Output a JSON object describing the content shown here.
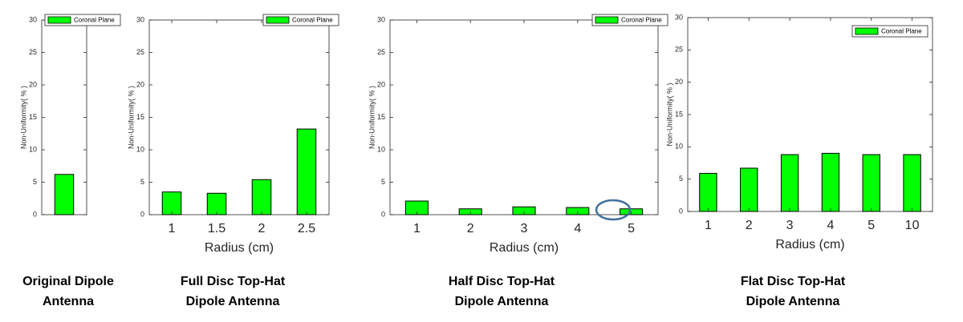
{
  "chart_data": [
    {
      "type": "bar",
      "ylabel": "Non-Uniformity( % )",
      "categories": [
        null
      ],
      "series": [
        {
          "name": "Coronal Plane",
          "color": "#00ff00",
          "values": [
            6.2
          ]
        }
      ],
      "ylim": [
        0,
        30
      ],
      "yticks": [
        0,
        5,
        10,
        15,
        20,
        25,
        30
      ],
      "legend": "upper left",
      "caption": [
        "Original Dipole",
        "Antenna"
      ]
    },
    {
      "type": "bar",
      "ylabel": "Non-Uniformity( % )",
      "xlabel": "Radius (cm)",
      "categories": [
        "1",
        "1.5",
        "2",
        "2.5"
      ],
      "series": [
        {
          "name": "Coronal Plane",
          "color": "#00ff00",
          "values": [
            3.5,
            3.3,
            5.4,
            13.2
          ]
        }
      ],
      "ylim": [
        0,
        30
      ],
      "yticks": [
        0,
        5,
        10,
        15,
        20,
        25,
        30
      ],
      "legend": "upper right",
      "caption": [
        "Full Disc Top-Hat",
        "Dipole Antenna"
      ]
    },
    {
      "type": "bar",
      "ylabel": "Non-Uniformity( % )",
      "xlabel": "Radius (cm)",
      "categories": [
        "1",
        "2",
        "3",
        "4",
        "5"
      ],
      "series": [
        {
          "name": "Coronal Plane",
          "color": "#00ff00",
          "values": [
            2.1,
            0.9,
            1.2,
            1.1,
            0.9
          ]
        }
      ],
      "ylim": [
        0,
        30
      ],
      "yticks": [
        0,
        5,
        10,
        15,
        20,
        25,
        30
      ],
      "legend": "upper right",
      "caption": [
        "Half Disc Top-Hat",
        "Dipole Antenna"
      ]
    },
    {
      "type": "bar",
      "ylabel": "Non-Uniformity( % )",
      "xlabel": "Radius (cm)",
      "categories": [
        "1",
        "2",
        "3",
        "4",
        "5",
        "10"
      ],
      "series": [
        {
          "name": "Coronal Plane",
          "color": "#00ff00",
          "values": [
            5.9,
            6.7,
            8.8,
            9.0,
            8.8,
            8.8
          ]
        }
      ],
      "ylim": [
        0,
        30
      ],
      "yticks": [
        0,
        5,
        10,
        15,
        20,
        25,
        30
      ],
      "legend": "upper right",
      "caption": [
        "Flat Disc Top-Hat",
        "Dipole Antenna"
      ]
    }
  ]
}
